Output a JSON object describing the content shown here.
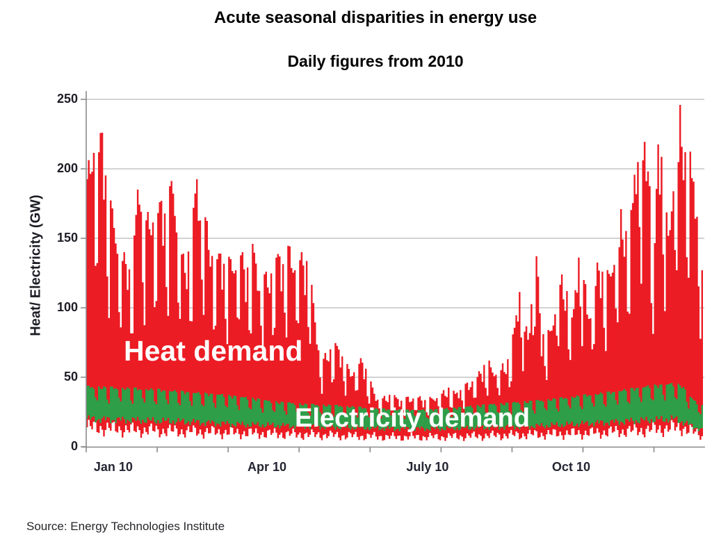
{
  "header": {
    "title": "Acute seasonal disparities in energy use",
    "subtitle": "Daily figures from 2010"
  },
  "source_note": "Source: Energy Technologies Institute",
  "colors": {
    "background": "#ffffff",
    "heat_red": "#ec1c24",
    "electricity_green": "#2e9e48",
    "gridline": "#c3c3c3",
    "axis": "#8a8a8a",
    "text_dark": "#1d1d26",
    "series_label_text": "#ffffff"
  },
  "chart_data": {
    "type": "area",
    "title": "Acute seasonal disparities in energy use",
    "subtitle": "Daily figures from 2010",
    "ylabel": "Heat/ Electricity (GW)",
    "ylim": [
      0,
      250
    ],
    "yticks": [
      0,
      50,
      100,
      150,
      200,
      250
    ],
    "grid": "horizontal only",
    "legend": "in-plot text annotations",
    "x_axis": {
      "unit": "day of year 2010",
      "range_days": [
        0,
        364
      ],
      "tick_days": [
        0,
        42,
        84,
        126,
        168,
        210,
        252,
        294,
        336
      ],
      "tick_labels": [
        {
          "label": "Jan 10",
          "day": 16
        },
        {
          "label": "Apr 10",
          "day": 107
        },
        {
          "label": "July 10",
          "day": 202
        },
        {
          "label": "Oct 10",
          "day": 287
        }
      ]
    },
    "annotations": [
      {
        "text": "Heat demand",
        "color": "#ffffff",
        "approx_gw": 65,
        "approx_day": 55
      },
      {
        "text": "Electricity demand",
        "color": "#ffffff",
        "approx_gw": 18,
        "approx_day": 170
      }
    ],
    "series": [
      {
        "name": "Heat demand",
        "color": "#ec1c24",
        "style": "dense daily spikes filled between min and max envelopes",
        "max_envelope_gw_by_day": [
          [
            0,
            200
          ],
          [
            4,
            225
          ],
          [
            9,
            226
          ],
          [
            13,
            183
          ],
          [
            17,
            160
          ],
          [
            22,
            140
          ],
          [
            25,
            131
          ],
          [
            28,
            152
          ],
          [
            31,
            202
          ],
          [
            34,
            166
          ],
          [
            38,
            172
          ],
          [
            43,
            176
          ],
          [
            47,
            180
          ],
          [
            51,
            195
          ],
          [
            55,
            155
          ],
          [
            58,
            131
          ],
          [
            62,
            160
          ],
          [
            65,
            196
          ],
          [
            69,
            175
          ],
          [
            73,
            150
          ],
          [
            77,
            138
          ],
          [
            81,
            142
          ],
          [
            85,
            135
          ],
          [
            90,
            150
          ],
          [
            94,
            130
          ],
          [
            98,
            146
          ],
          [
            102,
            128
          ],
          [
            106,
            126
          ],
          [
            110,
            135
          ],
          [
            114,
            140
          ],
          [
            118,
            145
          ],
          [
            123,
            143
          ],
          [
            127,
            140
          ],
          [
            131,
            138
          ],
          [
            135,
            95
          ],
          [
            139,
            62
          ],
          [
            143,
            73
          ],
          [
            147,
            75
          ],
          [
            151,
            70
          ],
          [
            155,
            56
          ],
          [
            159,
            60
          ],
          [
            163,
            65
          ],
          [
            167,
            50
          ],
          [
            171,
            38
          ],
          [
            175,
            36
          ],
          [
            180,
            39
          ],
          [
            185,
            35
          ],
          [
            190,
            36
          ],
          [
            195,
            38
          ],
          [
            200,
            34
          ],
          [
            205,
            37
          ],
          [
            210,
            40
          ],
          [
            214,
            43
          ],
          [
            218,
            40
          ],
          [
            222,
            44
          ],
          [
            226,
            47
          ],
          [
            230,
            52
          ],
          [
            234,
            58
          ],
          [
            238,
            62
          ],
          [
            242,
            56
          ],
          [
            246,
            60
          ],
          [
            250,
            64
          ],
          [
            253,
            92
          ],
          [
            256,
            117
          ],
          [
            259,
            85
          ],
          [
            262,
            92
          ],
          [
            266,
            149
          ],
          [
            269,
            80
          ],
          [
            273,
            84
          ],
          [
            277,
            102
          ],
          [
            280,
            128
          ],
          [
            284,
            112
          ],
          [
            287,
            96
          ],
          [
            291,
            142
          ],
          [
            294,
            126
          ],
          [
            298,
            94
          ],
          [
            302,
            138
          ],
          [
            306,
            122
          ],
          [
            310,
            136
          ],
          [
            313,
            140
          ],
          [
            316,
            171
          ],
          [
            320,
            150
          ],
          [
            324,
            205
          ],
          [
            328,
            222
          ],
          [
            332,
            218
          ],
          [
            335,
            130
          ],
          [
            338,
            226
          ],
          [
            341,
            200
          ],
          [
            344,
            160
          ],
          [
            348,
            205
          ],
          [
            351,
            246
          ],
          [
            354,
            212
          ],
          [
            357,
            222
          ],
          [
            360,
            185
          ],
          [
            364,
            138
          ]
        ],
        "min_envelope_gw_by_day": [
          [
            0,
            14
          ],
          [
            30,
            12
          ],
          [
            60,
            11
          ],
          [
            90,
            10
          ],
          [
            120,
            9
          ],
          [
            150,
            8
          ],
          [
            180,
            7
          ],
          [
            210,
            7
          ],
          [
            240,
            8
          ],
          [
            270,
            9
          ],
          [
            300,
            10
          ],
          [
            330,
            12
          ],
          [
            352,
            14
          ],
          [
            364,
            8
          ]
        ],
        "weekly_dip_pattern": [
          0.96,
          1.0,
          0.93,
          0.85,
          0.95,
          0.63,
          0.54
        ]
      },
      {
        "name": "Electricity demand",
        "color": "#2e9e48",
        "style": "scalloped weekly band drawn over heat series",
        "max_envelope_gw_by_day": [
          [
            0,
            44
          ],
          [
            20,
            43
          ],
          [
            40,
            42
          ],
          [
            60,
            40
          ],
          [
            80,
            38
          ],
          [
            100,
            35
          ],
          [
            110,
            33
          ],
          [
            130,
            31
          ],
          [
            150,
            30
          ],
          [
            170,
            28
          ],
          [
            185,
            27
          ],
          [
            200,
            27
          ],
          [
            215,
            28
          ],
          [
            230,
            30
          ],
          [
            250,
            32
          ],
          [
            270,
            34
          ],
          [
            290,
            37
          ],
          [
            310,
            40
          ],
          [
            330,
            44
          ],
          [
            345,
            46
          ],
          [
            352,
            45
          ],
          [
            356,
            38
          ],
          [
            360,
            33
          ],
          [
            364,
            30
          ]
        ],
        "min_envelope_gw_by_day": [
          [
            0,
            20
          ],
          [
            30,
            19
          ],
          [
            60,
            18
          ],
          [
            90,
            16
          ],
          [
            120,
            15
          ],
          [
            150,
            14
          ],
          [
            180,
            13
          ],
          [
            210,
            13
          ],
          [
            240,
            14
          ],
          [
            270,
            15
          ],
          [
            300,
            17
          ],
          [
            330,
            19
          ],
          [
            348,
            20
          ],
          [
            356,
            16
          ],
          [
            364,
            12
          ]
        ],
        "weekly_dip_pattern": [
          1.0,
          0.98,
          0.96,
          1.0,
          0.97,
          0.8,
          0.74
        ]
      }
    ]
  }
}
